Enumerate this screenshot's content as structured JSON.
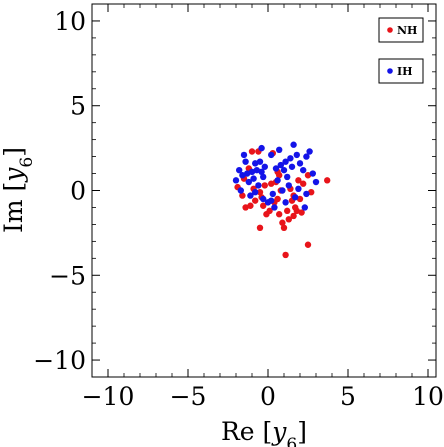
{
  "chart_data": {
    "type": "scatter",
    "title": "",
    "xlabel": "Re [y6]",
    "ylabel": "Im [y6]",
    "xlim": [
      -11,
      10.5
    ],
    "ylim": [
      -11,
      11
    ],
    "x_ticks": [
      {
        "value": -10,
        "label": "−10"
      },
      {
        "value": -5,
        "label": "−5"
      },
      {
        "value": 0,
        "label": "0"
      },
      {
        "value": 5,
        "label": "5"
      },
      {
        "value": 10,
        "label": "10"
      }
    ],
    "y_ticks": [
      {
        "value": -10,
        "label": "−10"
      },
      {
        "value": -5,
        "label": "−5"
      },
      {
        "value": 0,
        "label": "0"
      },
      {
        "value": 5,
        "label": "5"
      },
      {
        "value": 10,
        "label": "10"
      }
    ],
    "grid": false,
    "legend_position": "top-right",
    "series": [
      {
        "name": "NH",
        "color": "#e8141a",
        "points": [
          [
            -1.9,
            0.2
          ],
          [
            -1.6,
            -0.3
          ],
          [
            -1.4,
            -1.0
          ],
          [
            -1.1,
            -0.9
          ],
          [
            -0.8,
            -0.6
          ],
          [
            -0.5,
            -0.1
          ],
          [
            -0.2,
            0.3
          ],
          [
            -0.3,
            -0.9
          ],
          [
            -0.5,
            -2.2
          ],
          [
            0.1,
            -1.2
          ],
          [
            0.4,
            -0.7
          ],
          [
            0.6,
            -0.5
          ],
          [
            0.5,
            0.5
          ],
          [
            0.7,
            0.9
          ],
          [
            0.8,
            0.0
          ],
          [
            0.7,
            -1.4
          ],
          [
            0.9,
            -1.9
          ],
          [
            1.0,
            -2.2
          ],
          [
            1.2,
            -1.2
          ],
          [
            1.3,
            -1.7
          ],
          [
            1.5,
            -0.6
          ],
          [
            1.7,
            -1.0
          ],
          [
            1.8,
            -1.2
          ],
          [
            1.6,
            -1.5
          ],
          [
            2.0,
            -0.5
          ],
          [
            2.2,
            0.4
          ],
          [
            2.5,
            0.9
          ],
          [
            2.7,
            -0.1
          ],
          [
            3.7,
            0.6
          ],
          [
            2.5,
            -3.2
          ],
          [
            1.1,
            -3.8
          ],
          [
            -1.0,
            2.3
          ],
          [
            -0.6,
            2.3
          ],
          [
            0.3,
            2.2
          ],
          [
            0.6,
            1.1
          ],
          [
            -1.5,
            0.7
          ],
          [
            -1.2,
            1.3
          ],
          [
            -0.9,
            0.1
          ],
          [
            -0.4,
            -0.4
          ],
          [
            1.9,
            0.6
          ],
          [
            1.4,
            0.1
          ],
          [
            2.1,
            -1.3
          ],
          [
            0.2,
            0.4
          ],
          [
            -0.1,
            -1.4
          ],
          [
            1.6,
            -0.3
          ]
        ]
      },
      {
        "name": "IH",
        "color": "#1414e8",
        "points": [
          [
            -2.0,
            0.6
          ],
          [
            -1.8,
            1.2
          ],
          [
            -1.5,
            2.1
          ],
          [
            -1.6,
            0.9
          ],
          [
            -1.3,
            1.0
          ],
          [
            -1.2,
            0.5
          ],
          [
            -1.0,
            1.1
          ],
          [
            -0.9,
            0.7
          ],
          [
            -0.8,
            1.6
          ],
          [
            -0.7,
            1.2
          ],
          [
            -0.6,
            0.3
          ],
          [
            -0.5,
            1.7
          ],
          [
            -0.4,
            1.1
          ],
          [
            -0.3,
            0.8
          ],
          [
            -0.2,
            1.4
          ],
          [
            -1.1,
            -0.3
          ],
          [
            -0.8,
            -0.1
          ],
          [
            -0.3,
            -0.5
          ],
          [
            0.0,
            -0.7
          ],
          [
            0.3,
            -0.2
          ],
          [
            0.5,
            1.3
          ],
          [
            0.6,
            0.6
          ],
          [
            0.8,
            1.5
          ],
          [
            1.0,
            1.2
          ],
          [
            1.1,
            1.7
          ],
          [
            1.2,
            0.8
          ],
          [
            1.4,
            1.9
          ],
          [
            1.5,
            1.4
          ],
          [
            1.6,
            2.7
          ],
          [
            1.8,
            2.1
          ],
          [
            2.0,
            1.6
          ],
          [
            2.2,
            1.2
          ],
          [
            2.4,
            2.0
          ],
          [
            2.6,
            2.3
          ],
          [
            2.8,
            1.0
          ],
          [
            3.0,
            0.5
          ],
          [
            2.4,
            -0.2
          ],
          [
            1.9,
            0.1
          ],
          [
            1.3,
            0.3
          ],
          [
            0.9,
            0.0
          ],
          [
            0.4,
            -1.0
          ],
          [
            0.2,
            -0.6
          ],
          [
            -0.4,
            2.5
          ],
          [
            0.2,
            2.1
          ],
          [
            -1.7,
            0.0
          ],
          [
            1.7,
            -0.4
          ],
          [
            2.3,
            -1.0
          ],
          [
            1.1,
            -0.7
          ],
          [
            -1.4,
            1.7
          ],
          [
            0.7,
            2.4
          ]
        ]
      }
    ]
  }
}
